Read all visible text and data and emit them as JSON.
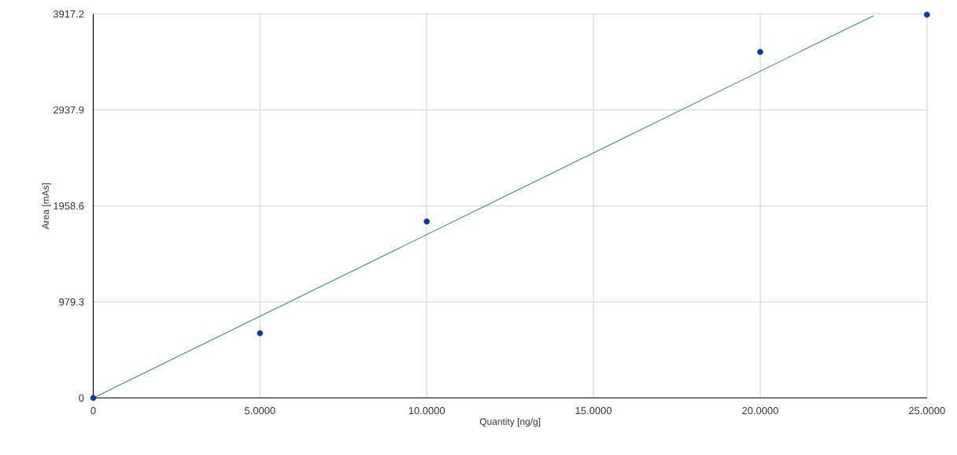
{
  "chart_data": {
    "type": "scatter",
    "xlabel": "Quantity [ng/g]",
    "ylabel": "Area [mAs]",
    "xlim": [
      0,
      25
    ],
    "ylim": [
      0,
      3917.2
    ],
    "xticks": [
      0,
      {
        "value": 5,
        "label": "5.0000"
      },
      {
        "value": 10,
        "label": "10.0000"
      },
      {
        "value": 15,
        "label": "15.0000"
      },
      {
        "value": 20,
        "label": "20.0000"
      },
      {
        "value": 25,
        "label": "25.0000"
      }
    ],
    "yticks": [
      0,
      979.3,
      1958.6,
      2937.9,
      3917.2
    ],
    "grid": true,
    "series": [
      {
        "marker": "circle",
        "color": "#0a3a99",
        "x": [
          0,
          5,
          10,
          20,
          25
        ],
        "values": [
          0,
          660,
          1800,
          3530,
          3910
        ]
      },
      {
        "type": "line",
        "marker": "none",
        "line_style": "solid",
        "color": "#3a8a80",
        "x": [
          0,
          23.4
        ],
        "values": [
          0,
          3900
        ]
      }
    ]
  }
}
